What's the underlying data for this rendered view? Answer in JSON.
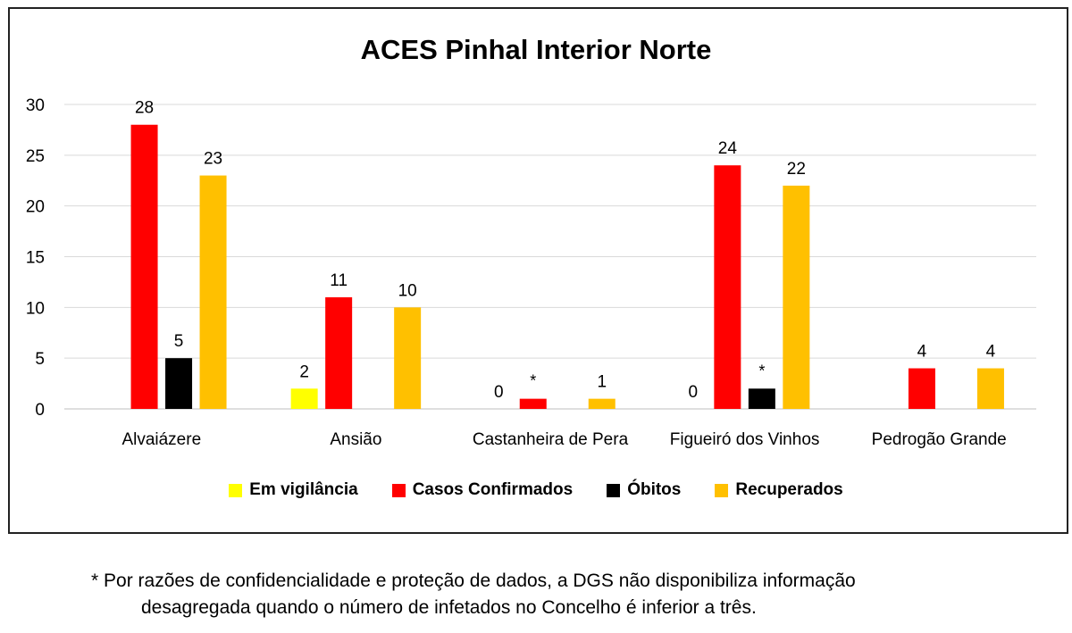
{
  "chart_data": {
    "type": "bar",
    "title": "ACES Pinhal Interior Norte",
    "categories": [
      "Alvaiázere",
      "Ansião",
      "Castanheira de Pera",
      "Figueiró dos Vinhos",
      "Pedrogão Grande"
    ],
    "ylim": [
      0,
      30
    ],
    "yticks": [
      0,
      5,
      10,
      15,
      20,
      25,
      30
    ],
    "grid": true,
    "legend_position": "bottom",
    "series": [
      {
        "name": "Em vigilância",
        "color": "#FFFF00",
        "values": [
          null,
          2,
          0,
          0,
          null
        ],
        "labels": [
          "",
          "2",
          "0",
          "0",
          ""
        ]
      },
      {
        "name": "Casos Confirmados",
        "color": "#FF0000",
        "values": [
          28,
          11,
          1,
          24,
          4
        ],
        "labels": [
          "28",
          "11",
          "*",
          "24",
          "4"
        ]
      },
      {
        "name": "Óbitos",
        "color": "#000000",
        "values": [
          5,
          null,
          null,
          2,
          null
        ],
        "labels": [
          "5",
          "",
          "",
          "*",
          ""
        ]
      },
      {
        "name": "Recuperados",
        "color": "#FFC000",
        "values": [
          23,
          10,
          1,
          22,
          4
        ],
        "labels": [
          "23",
          "10",
          "1",
          "22",
          "4"
        ]
      }
    ]
  },
  "footnote": {
    "line1": "* Por razões de confidencialidade e proteção de dados, a DGS não disponibiliza informação",
    "line2": "desagregada quando o número de infetados no Concelho é inferior a três."
  }
}
